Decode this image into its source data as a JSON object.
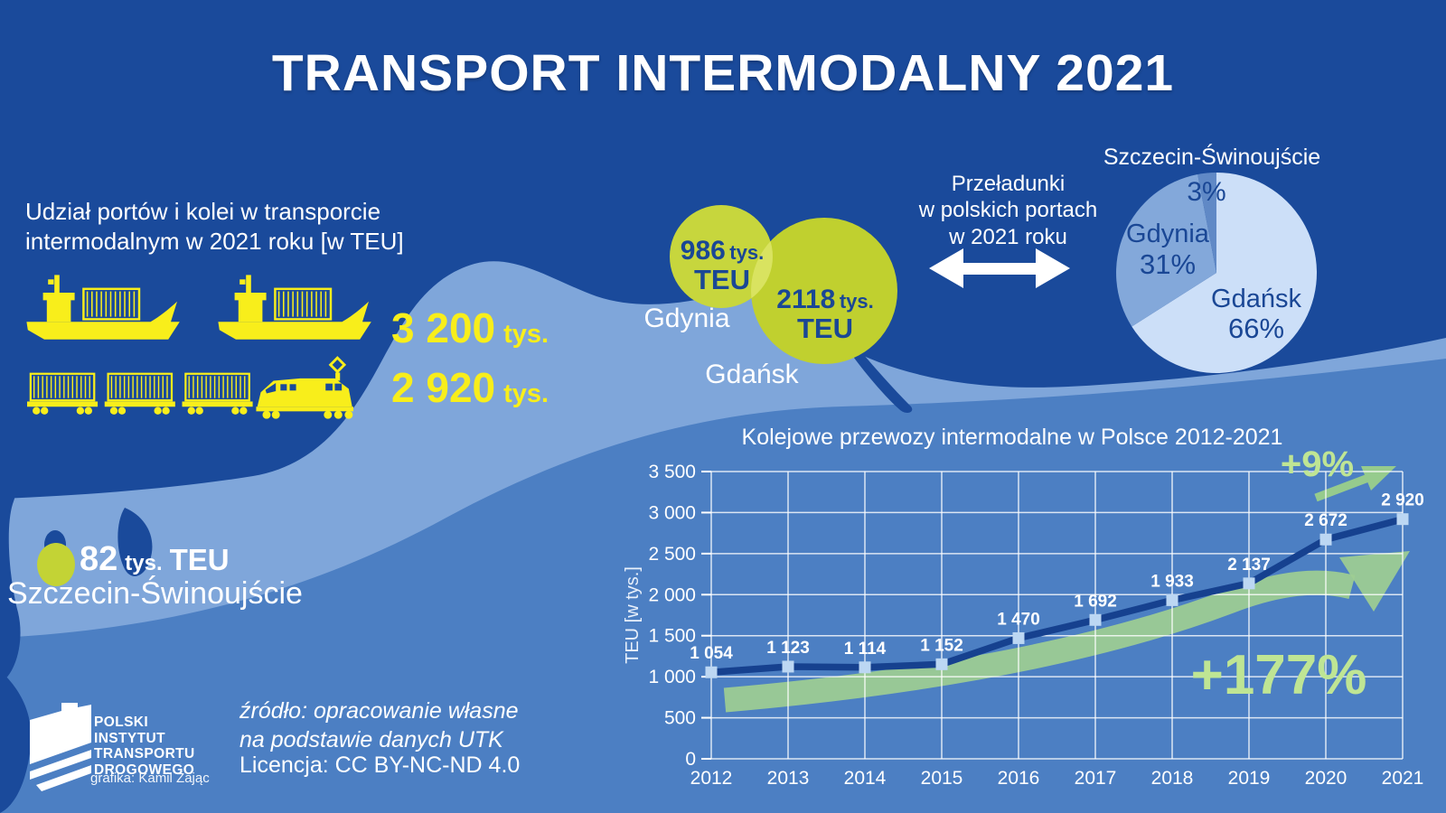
{
  "colors": {
    "sea": "#1A4A9B",
    "land": "#7FA6DA",
    "bottom": "#4C7FC3",
    "yellow": "#F8EE1B",
    "bubble_green": "#C3D335",
    "accent_green": "#BFE594",
    "swoosh_green": "#9ECD92",
    "line_navy": "#16418F",
    "marker_blue": "#BCD7F3",
    "navy_text": "#1A4795"
  },
  "header": {
    "title": "TRANSPORT INTERMODALNY 2021"
  },
  "ports_rail": {
    "heading_line1": "Udział portów i kolei w transporcie",
    "heading_line2": "intermodalnym w 2021 roku [w TEU]",
    "ships_value": "3 200",
    "ships_unit": "tys.",
    "rail_value": "2 920",
    "rail_unit": "tys."
  },
  "bubbles": {
    "gdynia_value": "986",
    "gdynia_unit": "tys.",
    "gdynia_teu": "TEU",
    "gdynia_label": "Gdynia",
    "gdansk_value": "2118",
    "gdansk_unit": "tys.",
    "gdansk_teu": "TEU",
    "gdansk_label": "Gdańsk",
    "szczecin_value": "82",
    "szczecin_unit": "tys.",
    "szczecin_teu": "TEU",
    "szczecin_label": "Szczecin-Świnoujście"
  },
  "transshipment": {
    "line1": "Przeładunki",
    "line2": "w polskich portach",
    "line3": "w 2021 roku"
  },
  "pie": {
    "heading": "Szczecin-Świnoujście",
    "szczecin_pct": "3%",
    "gdynia_name": "Gdynia",
    "gdynia_pct": "31%",
    "gdansk_name": "Gdańsk",
    "gdansk_pct": "66%"
  },
  "footer": {
    "logo_line1": "POLSKI",
    "logo_line2": "INSTYTUT",
    "logo_line3": "TRANSPORTU",
    "logo_line4": "DROGOWEGO",
    "credit": "grafika: Kamil Zając",
    "source_line1": "źródło: opracowanie własne",
    "source_line2": "na podstawie danych UTK",
    "license": "Licencja: CC BY-NC-ND 4.0"
  },
  "chart_data": [
    {
      "type": "line",
      "title": "Kolejowe przewozy intermodalne w Polsce 2012-2021",
      "ylabel": "TEU [w tys.]",
      "x": [
        "2012",
        "2013",
        "2014",
        "2015",
        "2016",
        "2017",
        "2018",
        "2019",
        "2020",
        "2021"
      ],
      "values": [
        1054,
        1123,
        1114,
        1152,
        1470,
        1692,
        1933,
        2137,
        2672,
        2920
      ],
      "value_labels": [
        "1 054",
        "1 123",
        "1 114",
        "1 152",
        "1 470",
        "1 692",
        "1 933",
        "2 137",
        "2 672",
        "2 920"
      ],
      "ylim": [
        0,
        3500
      ],
      "ytick_step": 500,
      "ytick_labels": [
        "0",
        "500",
        "1 000",
        "1 500",
        "2 000",
        "2 500",
        "3 000",
        "3 500"
      ],
      "grid": true,
      "legend": "none",
      "annotations": [
        {
          "text": "+9%"
        },
        {
          "text": "+177%"
        }
      ]
    },
    {
      "type": "pie",
      "title": "Przeładunki w polskich portach w 2021 roku",
      "categories": [
        "Gdańsk",
        "Gdynia",
        "Szczecin-Świnoujście"
      ],
      "values": [
        66,
        31,
        3
      ],
      "unit": "%",
      "colors": [
        "#CCDFF8",
        "#83A8DA",
        "#6089C6"
      ]
    },
    {
      "type": "bubble",
      "title": "Udział portów i kolei w transporcie intermodalnym w 2021 roku [w TEU]",
      "categories": [
        "Gdynia",
        "Gdańsk",
        "Szczecin-Świnoujście"
      ],
      "values_tys_teu": [
        986,
        2118,
        82
      ],
      "totals_tys_teu": {
        "porty": 3200,
        "kolej": 2920
      }
    }
  ]
}
